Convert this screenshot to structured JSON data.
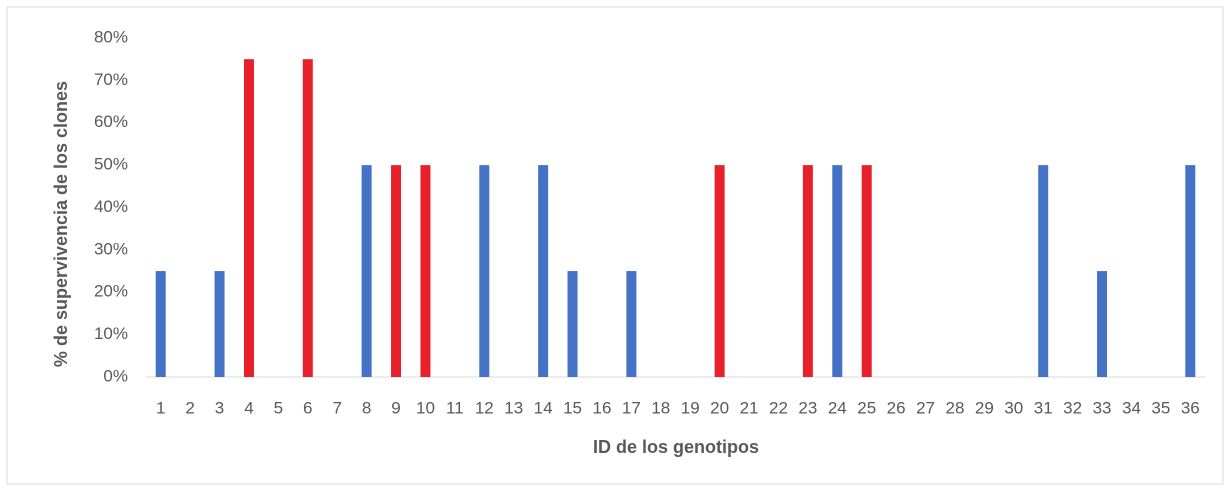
{
  "chart_data": {
    "type": "bar",
    "x_label": "ID de los genotipos",
    "y_label": "% de supervivencia de los clones",
    "categories": [
      "1",
      "2",
      "3",
      "4",
      "5",
      "6",
      "7",
      "8",
      "9",
      "10",
      "11",
      "12",
      "13",
      "14",
      "15",
      "16",
      "17",
      "18",
      "19",
      "20",
      "21",
      "22",
      "23",
      "24",
      "25",
      "26",
      "27",
      "28",
      "29",
      "30",
      "31",
      "32",
      "33",
      "34",
      "35",
      "36"
    ],
    "values": [
      25,
      0,
      25,
      75,
      0,
      75,
      0,
      50,
      50,
      50,
      0,
      50,
      0,
      50,
      25,
      0,
      25,
      0,
      0,
      50,
      0,
      0,
      50,
      50,
      50,
      0,
      0,
      0,
      0,
      0,
      50,
      0,
      25,
      0,
      0,
      50
    ],
    "colors": [
      "#4472c4",
      "#4472c4",
      "#4472c4",
      "#e8202a",
      "#4472c4",
      "#e8202a",
      "#4472c4",
      "#4472c4",
      "#e8202a",
      "#e8202a",
      "#4472c4",
      "#4472c4",
      "#4472c4",
      "#4472c4",
      "#4472c4",
      "#4472c4",
      "#4472c4",
      "#4472c4",
      "#4472c4",
      "#e8202a",
      "#4472c4",
      "#4472c4",
      "#e8202a",
      "#4472c4",
      "#e8202a",
      "#4472c4",
      "#4472c4",
      "#4472c4",
      "#4472c4",
      "#4472c4",
      "#4472c4",
      "#4472c4",
      "#4472c4",
      "#4472c4",
      "#4472c4",
      "#4472c4"
    ],
    "ylim": [
      0,
      80
    ],
    "yticks": [
      {
        "value": 0,
        "label": "0%"
      },
      {
        "value": 10,
        "label": "10%"
      },
      {
        "value": 20,
        "label": "20%"
      },
      {
        "value": 30,
        "label": "30%"
      },
      {
        "value": 40,
        "label": "40%"
      },
      {
        "value": 50,
        "label": "50%"
      },
      {
        "value": 60,
        "label": "60%"
      },
      {
        "value": 70,
        "label": "70%"
      },
      {
        "value": 80,
        "label": "80%"
      }
    ],
    "grid": false
  }
}
